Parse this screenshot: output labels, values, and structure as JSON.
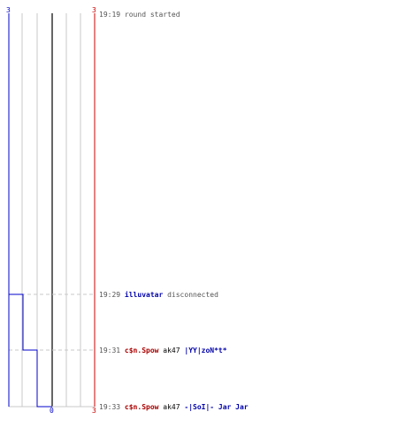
{
  "axis": {
    "top_left": "3",
    "top_right": "3",
    "bottom_right": "3",
    "bottom_zero": "0",
    "left_color": "#0000cc",
    "right_color": "#cc0000"
  },
  "score_line": {
    "color": "#0000cc",
    "values": [
      3,
      2,
      1,
      0
    ]
  },
  "events": [
    {
      "time": "19:19",
      "text": "round started"
    },
    {
      "time": "19:29",
      "player": "illuvatar",
      "player_color": "#0000aa",
      "text": "disconnected"
    },
    {
      "time": "19:31",
      "killer": "c$n.Spow",
      "killer_color": "#aa0000",
      "weapon": "ak47",
      "victim": "|YY|zoN*t*",
      "victim_color": "#0000aa"
    },
    {
      "time": "19:33",
      "killer": "c$n.Spow",
      "killer_color": "#aa0000",
      "weapon": "ak47",
      "victim": "-|SoI|- Jar Jar",
      "victim_color": "#0000aa"
    }
  ]
}
